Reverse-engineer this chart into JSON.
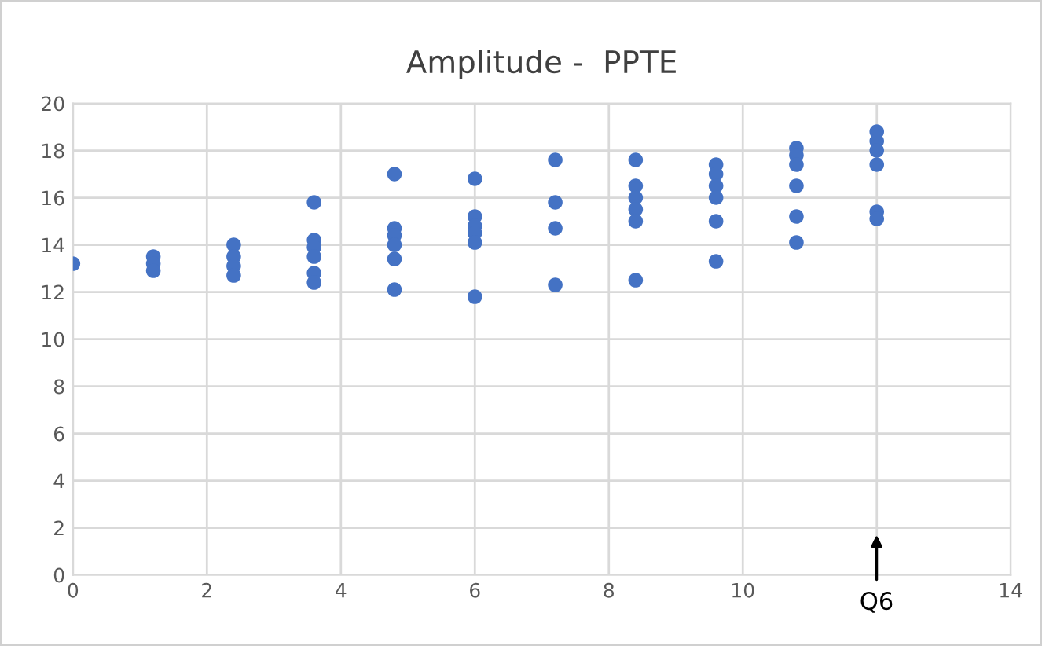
{
  "chart_data": {
    "type": "scatter",
    "title": "Amplitude -  PPTE",
    "series": [
      {
        "color": "#4472c4",
        "x": [
          0,
          1.2,
          1.2,
          1.2,
          2.4,
          2.4,
          2.4,
          2.4,
          3.6,
          3.6,
          3.6,
          3.6,
          3.6,
          3.6,
          4.8,
          4.8,
          4.8,
          4.8,
          4.8,
          4.8,
          6,
          6,
          6,
          6,
          6,
          6,
          7.2,
          7.2,
          7.2,
          7.2,
          8.4,
          8.4,
          8.4,
          8.4,
          8.4,
          8.4,
          9.6,
          9.6,
          9.6,
          9.6,
          9.6,
          9.6,
          10.8,
          10.8,
          10.8,
          10.8,
          10.8,
          10.8,
          12,
          12,
          12,
          12,
          12,
          12
        ],
        "values": [
          13.2,
          13.5,
          13.2,
          12.9,
          14.0,
          13.5,
          13.1,
          12.7,
          15.8,
          14.2,
          13.9,
          13.5,
          12.8,
          12.4,
          17.0,
          14.7,
          14.4,
          14.0,
          13.4,
          12.1,
          16.8,
          15.2,
          14.8,
          14.5,
          14.1,
          11.8,
          17.6,
          15.8,
          14.7,
          12.3,
          17.6,
          16.5,
          16.0,
          15.5,
          15.0,
          12.5,
          17.4,
          17.0,
          16.5,
          16.0,
          15.0,
          13.3,
          18.1,
          17.8,
          17.4,
          16.5,
          15.2,
          14.1,
          18.8,
          18.4,
          18.0,
          17.4,
          15.4,
          15.1
        ]
      }
    ],
    "xlim": [
      0,
      14
    ],
    "xticks": [
      0,
      2,
      4,
      6,
      8,
      10,
      {
        "value": 12,
        "label": null
      },
      14
    ],
    "ylim": [
      0,
      20
    ],
    "yticks": [
      0,
      2,
      4,
      6,
      8,
      10,
      12,
      14,
      16,
      18,
      20
    ],
    "grid": true,
    "marker": "circle",
    "annotations": [
      "Q6"
    ]
  }
}
